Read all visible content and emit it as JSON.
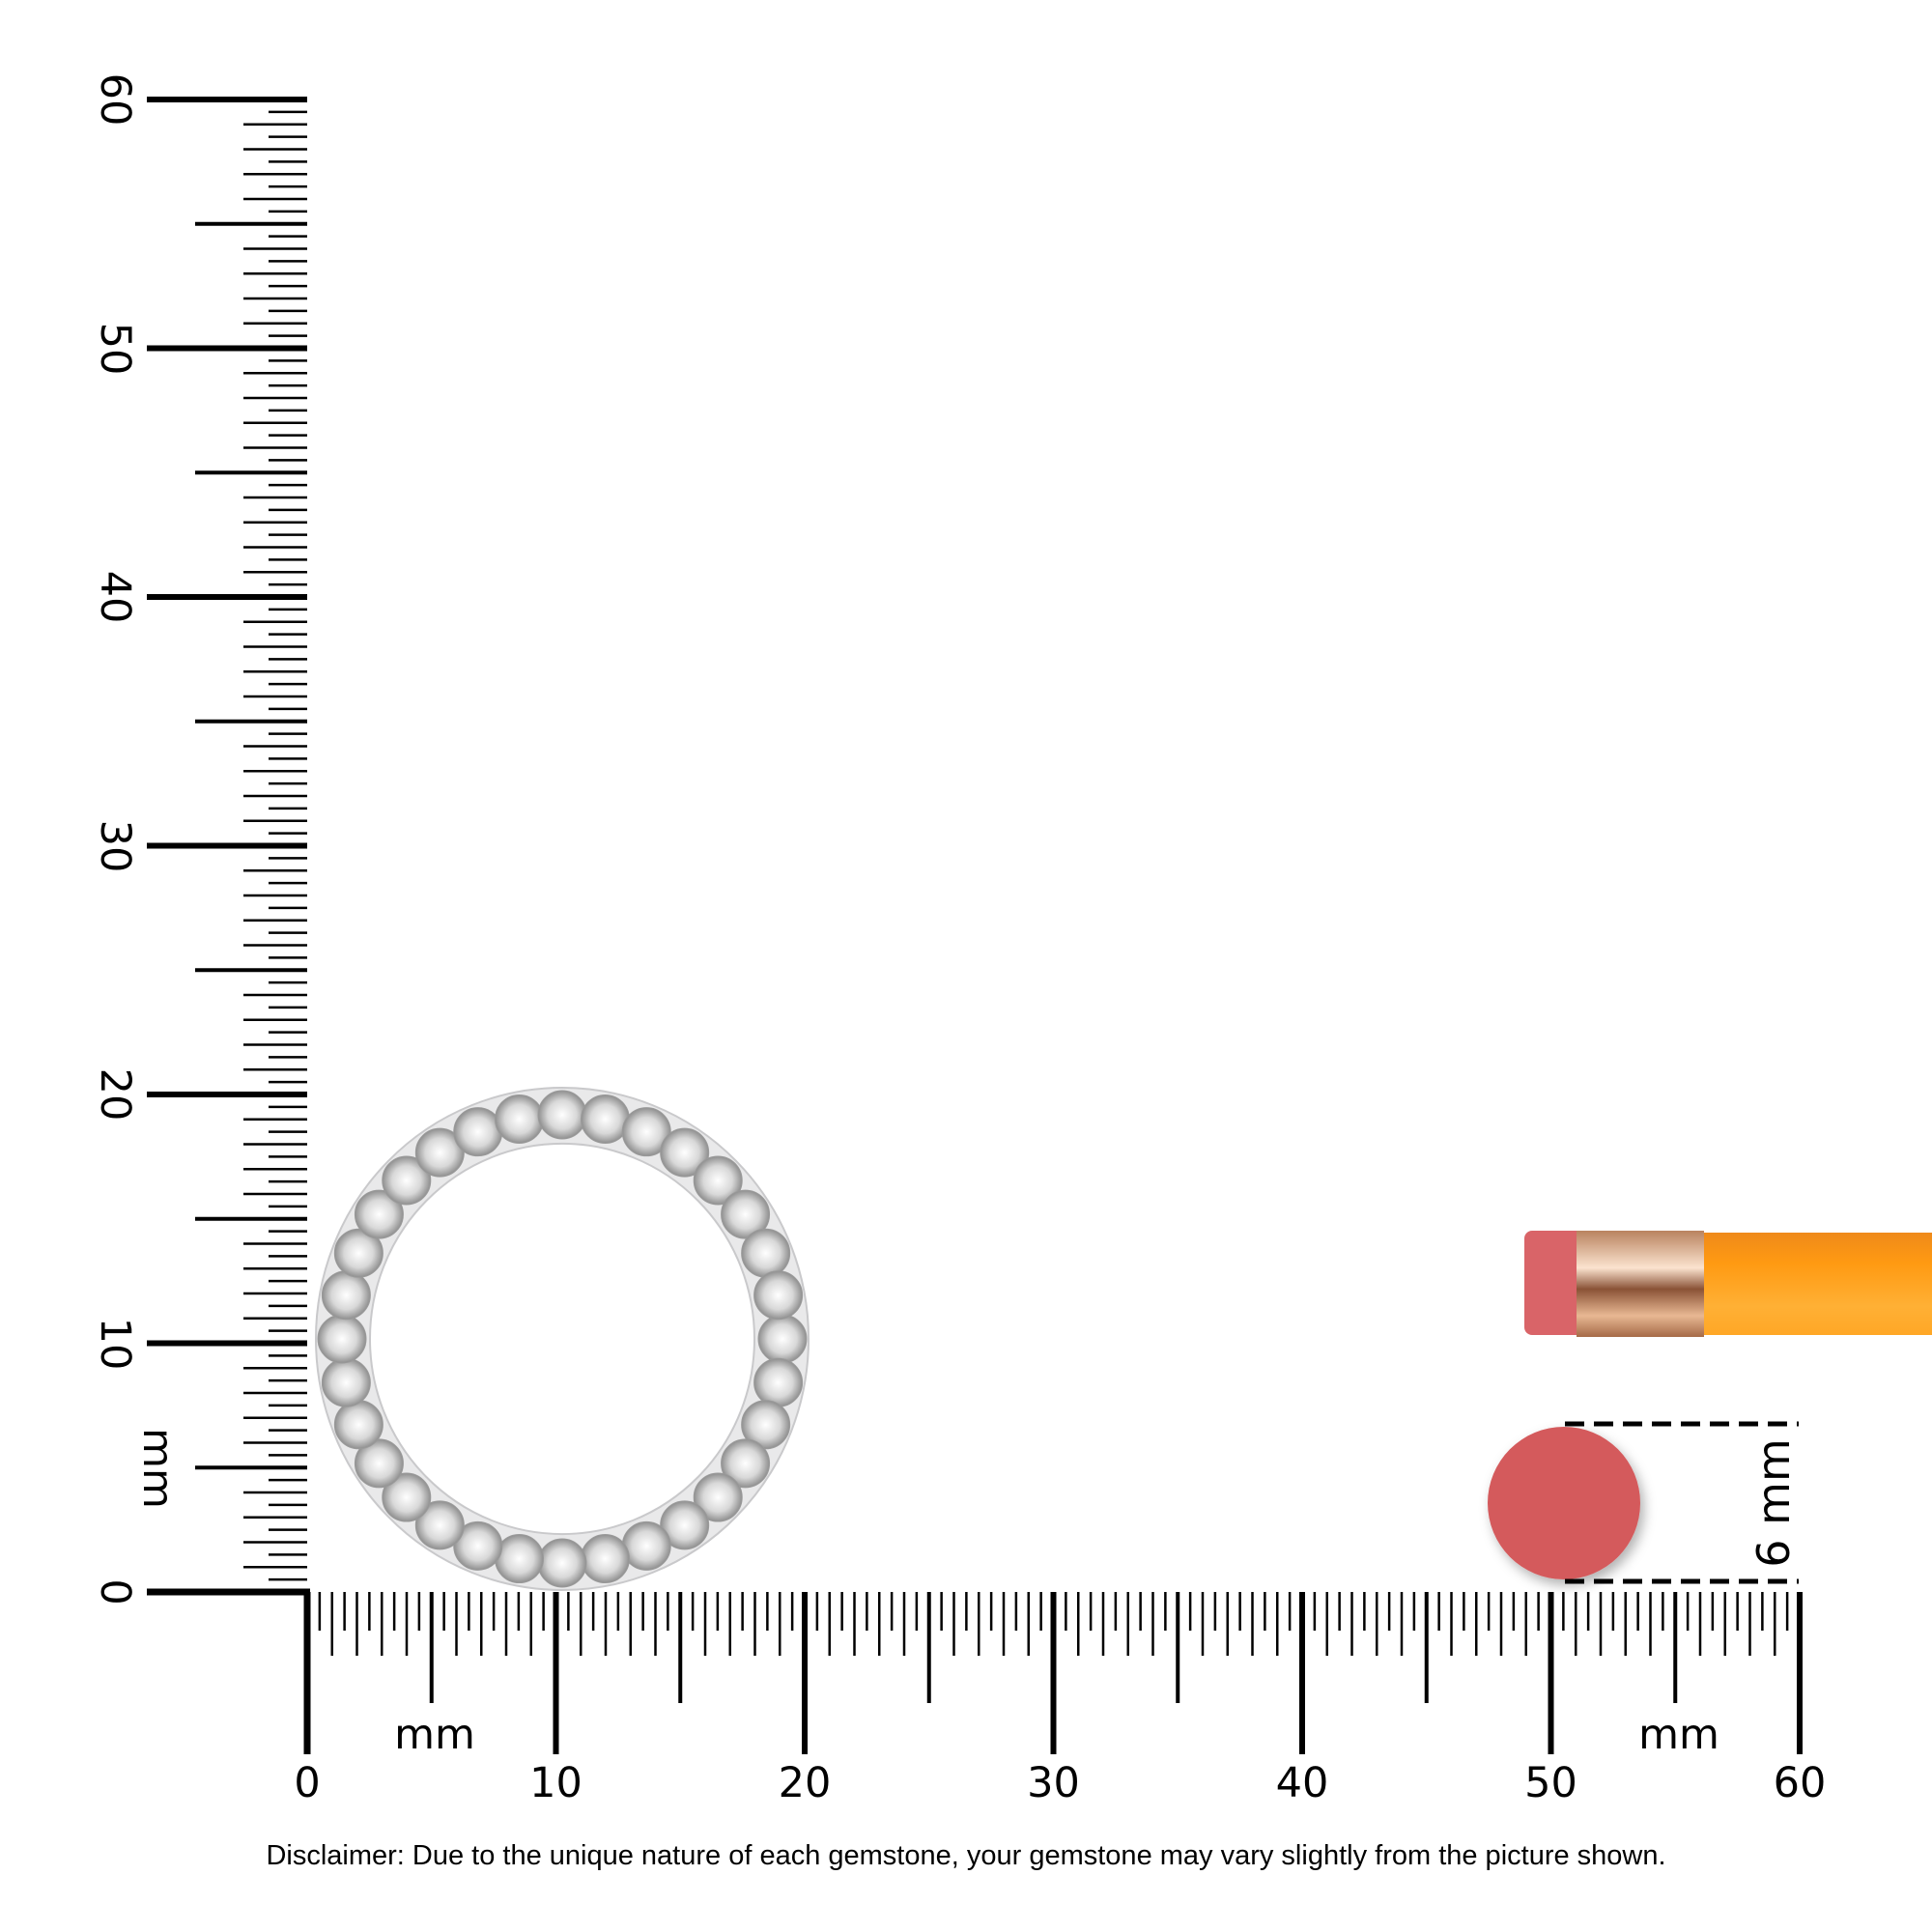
{
  "ruler": {
    "x_labels": [
      "0",
      "10",
      "20",
      "30",
      "40",
      "50",
      "60"
    ],
    "y_labels": [
      "0",
      "10",
      "20",
      "30",
      "40",
      "50",
      "60"
    ],
    "x_unit_left": "mm",
    "x_unit_right": "mm",
    "y_unit": "mm"
  },
  "reference": {
    "size_label": "6 mm",
    "eraser_color": "#d45a5c",
    "pencil_color": "#f7941d"
  },
  "product": {
    "metal_color": "#e9e9ea",
    "stone_count": 32
  },
  "disclaimer": "Disclaimer: Due to the unique nature of each gemstone, your gemstone may vary slightly from the picture shown."
}
